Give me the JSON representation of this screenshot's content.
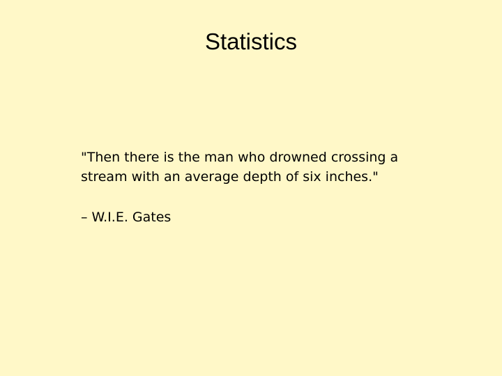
{
  "slide": {
    "title": "Statistics",
    "quote": {
      "lines": [
        "\"Then there is the man who drowned crossing a",
        "stream with an average depth of six inches.\""
      ]
    },
    "attribution": "– W.I.E. Gates"
  },
  "colors": {
    "background": "#fff8c8",
    "text": "#000000"
  }
}
